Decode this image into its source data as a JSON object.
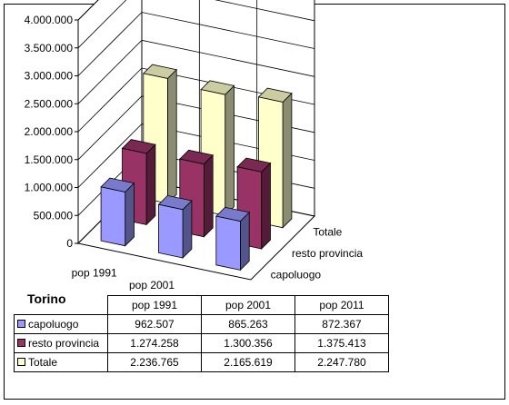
{
  "chart_data": {
    "type": "bar",
    "title": "Torino",
    "categories": [
      "pop 1991",
      "pop 2001",
      "pop 2011"
    ],
    "series": [
      {
        "name": "capoluogo",
        "values": [
          962507,
          865263,
          872367
        ],
        "color": "#9999FF",
        "labels": [
          "962.507",
          "865.263",
          "872.367"
        ]
      },
      {
        "name": "resto provincia",
        "values": [
          1274258,
          1300356,
          1375413
        ],
        "color": "#993366",
        "labels": [
          "1.274.258",
          "1.300.356",
          "1.375.413"
        ]
      },
      {
        "name": "Totale",
        "values": [
          2236765,
          2165619,
          2247780
        ],
        "color": "#FFFFCC",
        "labels": [
          "2.236.765",
          "2.165.619",
          "2.247.780"
        ]
      }
    ],
    "ylim": [
      0,
      4000000
    ],
    "yticks": [
      0,
      500000,
      1000000,
      1500000,
      2000000,
      2500000,
      3000000,
      3500000,
      4000000
    ],
    "ytick_labels": [
      "0",
      "500.000",
      "1.000.000",
      "1.500.000",
      "2.000.000",
      "2.500.000",
      "3.000.000",
      "3.500.000",
      "4.000.000"
    ],
    "series_axis_labels": [
      "Totale",
      "resto provincia",
      "capoluogo"
    ],
    "grid": true,
    "three_d": true,
    "data_table": true
  }
}
